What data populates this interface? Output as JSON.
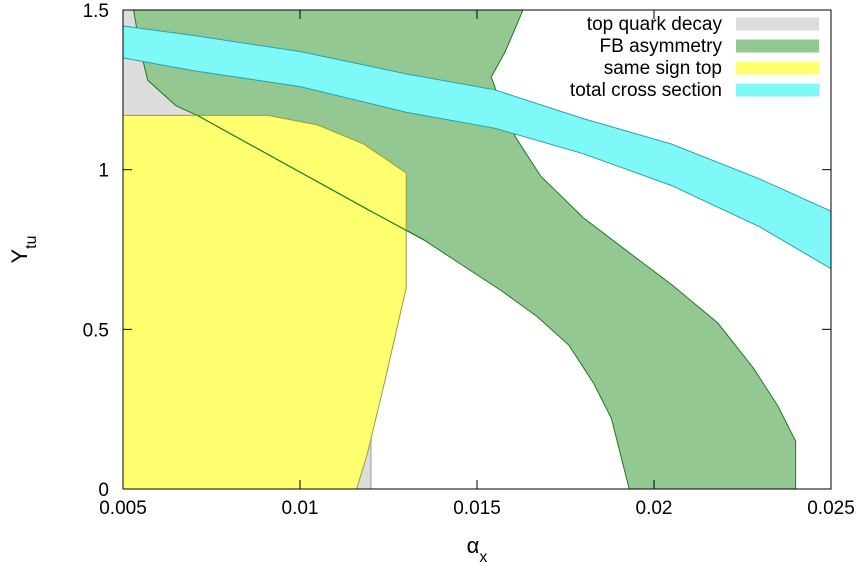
{
  "chart_data": {
    "type": "area",
    "title": "",
    "xlabel": "α",
    "xlabel_sub": "x",
    "ylabel": "Y",
    "ylabel_sub": "tu",
    "xlim": [
      0.005,
      0.025
    ],
    "ylim": [
      0,
      1.5
    ],
    "xticks": [
      {
        "value": 0.005,
        "label": "0.005"
      },
      {
        "value": 0.01,
        "label": "0.01"
      },
      {
        "value": 0.015,
        "label": "0.015"
      },
      {
        "value": 0.02,
        "label": "0.02"
      },
      {
        "value": 0.025,
        "label": "0.025"
      }
    ],
    "yticks": [
      {
        "value": 0,
        "label": "0"
      },
      {
        "value": 0.5,
        "label": "0.5"
      },
      {
        "value": 1,
        "label": "1"
      },
      {
        "value": 1.5,
        "label": "1.5"
      }
    ],
    "grid": false,
    "legend_position": "top-right",
    "series": [
      {
        "name": "top quark decay",
        "fill": "#dddddd",
        "stroke": "none",
        "polygon": [
          [
            0.005,
            0
          ],
          [
            0.005,
            1.5
          ],
          [
            0.012,
            1.5
          ],
          [
            0.012,
            0
          ]
        ],
        "vline": {
          "x": 0.012,
          "color": "#c0c0c0"
        }
      },
      {
        "name": "FB asymmetry",
        "fill": "#93c893",
        "stroke": "#1e7a1e",
        "polygon": [
          [
            0.0053,
            1.5
          ],
          [
            0.0055,
            1.37
          ],
          [
            0.0057,
            1.28
          ],
          [
            0.0065,
            1.2
          ],
          [
            0.0071,
            1.17
          ],
          [
            0.0073,
            1.17
          ],
          [
            0.0077,
            1.15
          ],
          [
            0.009,
            1.06
          ],
          [
            0.0105,
            0.97
          ],
          [
            0.012,
            0.87
          ],
          [
            0.0135,
            0.78
          ],
          [
            0.0146,
            0.7
          ],
          [
            0.0157,
            0.62
          ],
          [
            0.0167,
            0.54
          ],
          [
            0.0176,
            0.45
          ],
          [
            0.0183,
            0.33
          ],
          [
            0.0188,
            0.22
          ],
          [
            0.0193,
            0
          ],
          [
            0.024,
            0
          ],
          [
            0.024,
            0.15
          ],
          [
            0.0235,
            0.26
          ],
          [
            0.0228,
            0.38
          ],
          [
            0.0218,
            0.52
          ],
          [
            0.0205,
            0.64
          ],
          [
            0.0193,
            0.74
          ],
          [
            0.018,
            0.85
          ],
          [
            0.0168,
            0.98
          ],
          [
            0.0161,
            1.1
          ],
          [
            0.0157,
            1.2
          ],
          [
            0.0154,
            1.29
          ],
          [
            0.0158,
            1.37
          ],
          [
            0.0163,
            1.5
          ]
        ]
      },
      {
        "name": "same sign top",
        "fill": "#ffff70",
        "stroke": "#9c9c3c",
        "polygon": [
          [
            0.005,
            0
          ],
          [
            0.005,
            1.17
          ],
          [
            0.0091,
            1.17
          ],
          [
            0.0105,
            1.14
          ],
          [
            0.0118,
            1.08
          ],
          [
            0.013,
            0.99
          ],
          [
            0.013,
            0.63
          ],
          [
            0.0124,
            0.34
          ],
          [
            0.0119,
            0.11
          ],
          [
            0.0116,
            0
          ]
        ]
      },
      {
        "name": "total cross section",
        "fill": "#7ff8f8",
        "stroke": "#2aa0a8",
        "polygon": [
          [
            0.005,
            1.45
          ],
          [
            0.007,
            1.42
          ],
          [
            0.01,
            1.37
          ],
          [
            0.013,
            1.3
          ],
          [
            0.0155,
            1.25
          ],
          [
            0.018,
            1.16
          ],
          [
            0.0205,
            1.08
          ],
          [
            0.023,
            0.97
          ],
          [
            0.025,
            0.87
          ],
          [
            0.025,
            0.69
          ],
          [
            0.023,
            0.82
          ],
          [
            0.0205,
            0.95
          ],
          [
            0.018,
            1.05
          ],
          [
            0.0155,
            1.13
          ],
          [
            0.013,
            1.18
          ],
          [
            0.01,
            1.26
          ],
          [
            0.007,
            1.31
          ],
          [
            0.005,
            1.35
          ]
        ]
      }
    ],
    "lines": [
      {
        "color": "#1e7a1e",
        "points": [
          [
            0.0071,
            1.17
          ],
          [
            0.012,
            0.87
          ],
          [
            0.0135,
            0.78
          ]
        ]
      }
    ]
  }
}
